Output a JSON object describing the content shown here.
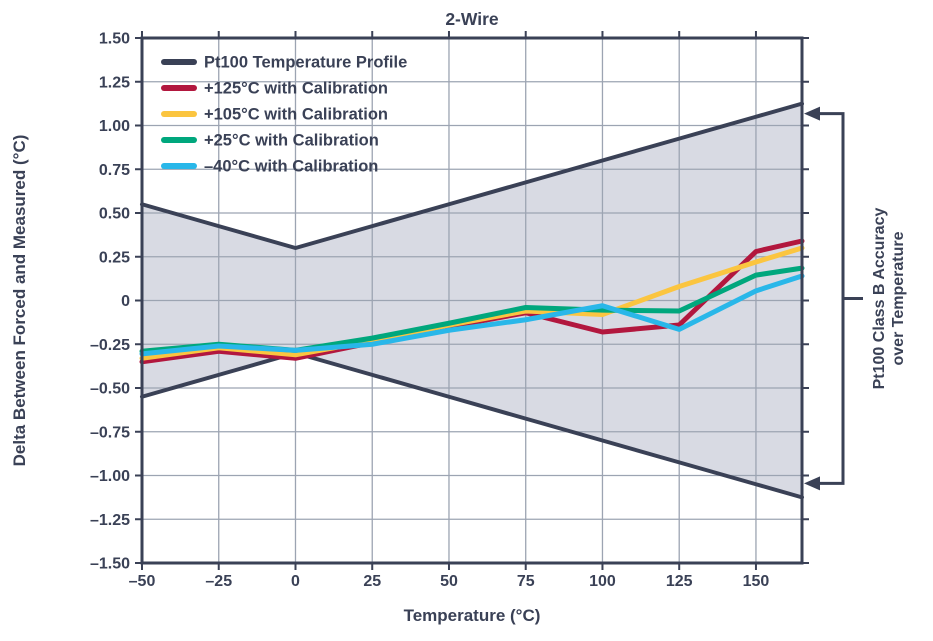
{
  "chart_data": {
    "type": "line",
    "title": "2-Wire",
    "xlabel": "Temperature (°C)",
    "ylabel": "Delta Between Forced and Measured (°C)",
    "xlim": [
      -50,
      165
    ],
    "ylim": [
      -1.5,
      1.5
    ],
    "grid": true,
    "x_ticks": [
      {
        "value": -50,
        "label": "–50"
      },
      {
        "value": -25,
        "label": "–25"
      },
      {
        "value": 0,
        "label": "0"
      },
      {
        "value": 25,
        "label": "25"
      },
      {
        "value": 50,
        "label": "50"
      },
      {
        "value": 75,
        "label": "75"
      },
      {
        "value": 100,
        "label": "100"
      },
      {
        "value": 125,
        "label": "125"
      },
      {
        "value": 150,
        "label": "150"
      }
    ],
    "y_ticks": [
      {
        "value": 1.5,
        "label": "1.50"
      },
      {
        "value": 1.25,
        "label": "1.25"
      },
      {
        "value": 1.0,
        "label": "1.00"
      },
      {
        "value": 0.75,
        "label": "0.75"
      },
      {
        "value": 0.5,
        "label": "0.50"
      },
      {
        "value": 0.25,
        "label": "0.25"
      },
      {
        "value": 0,
        "label": "0"
      },
      {
        "value": -0.25,
        "label": "–0.25"
      },
      {
        "value": -0.5,
        "label": "–0.50"
      },
      {
        "value": -0.75,
        "label": "–0.75"
      },
      {
        "value": -1.0,
        "label": "–1.00"
      },
      {
        "value": -1.25,
        "label": "–1.25"
      },
      {
        "value": -1.5,
        "label": "–1.50"
      }
    ],
    "x": [
      -50,
      -25,
      0,
      25,
      50,
      75,
      100,
      125,
      150,
      165
    ],
    "series": [
      {
        "name": "Pt100 Temperature Profile",
        "role": "class-b-limit-upper",
        "color": "#3A4156",
        "width": 4,
        "in_legend": true,
        "values": [
          0.55,
          0.425,
          0.3,
          0.425,
          0.55,
          0.675,
          0.8,
          0.925,
          1.05,
          1.125
        ]
      },
      {
        "name": "Pt100 Temperature Profile (lower limit)",
        "role": "class-b-limit-lower",
        "color": "#3A4156",
        "width": 4,
        "in_legend": false,
        "values": [
          -0.55,
          -0.425,
          -0.3,
          -0.425,
          -0.55,
          -0.675,
          -0.8,
          -0.925,
          -1.05,
          -1.125
        ]
      },
      {
        "name": "+125°C with Calibration",
        "role": "calibration-125",
        "color": "#B2173E",
        "width": 5,
        "in_legend": true,
        "values": [
          -0.35,
          -0.29,
          -0.33,
          -0.24,
          -0.15,
          -0.07,
          -0.18,
          -0.14,
          0.28,
          0.34
        ]
      },
      {
        "name": "+105°C with Calibration",
        "role": "calibration-105",
        "color": "#FBC540",
        "width": 5,
        "in_legend": true,
        "values": [
          -0.33,
          -0.27,
          -0.31,
          -0.23,
          -0.14,
          -0.06,
          -0.08,
          0.08,
          0.22,
          0.3
        ]
      },
      {
        "name": "+25°C with Calibration",
        "role": "calibration-25",
        "color": "#00A77D",
        "width": 5,
        "in_legend": true,
        "values": [
          -0.29,
          -0.25,
          -0.285,
          -0.215,
          -0.13,
          -0.04,
          -0.055,
          -0.06,
          0.145,
          0.185
        ]
      },
      {
        "name": "–40°C with Calibration",
        "role": "calibration-minus40",
        "color": "#29B7E9",
        "width": 5,
        "in_legend": true,
        "values": [
          -0.305,
          -0.26,
          -0.285,
          -0.25,
          -0.17,
          -0.11,
          -0.03,
          -0.165,
          0.055,
          0.14
        ]
      }
    ],
    "band": {
      "fill": "#D8DAE3",
      "between": [
        "class-b-limit-upper",
        "class-b-limit-lower"
      ]
    },
    "legend": {
      "position": "top-left",
      "entries": [
        "Pt100 Temperature Profile",
        "+125°C with Calibration",
        "+105°C with Calibration",
        "+25°C with Calibration",
        "–40°C with Calibration"
      ]
    },
    "annotation": {
      "line1": "Pt100 Class B Accuracy",
      "line2": "over Temperature",
      "arrow_top_value": 1.125,
      "arrow_bottom_value": -1.125
    }
  },
  "colors": {
    "text": "#3A4156",
    "axis": "#3A4156",
    "grid": "#9CA4B2",
    "band": "#D8DAE3",
    "background": "#FFFFFF"
  }
}
